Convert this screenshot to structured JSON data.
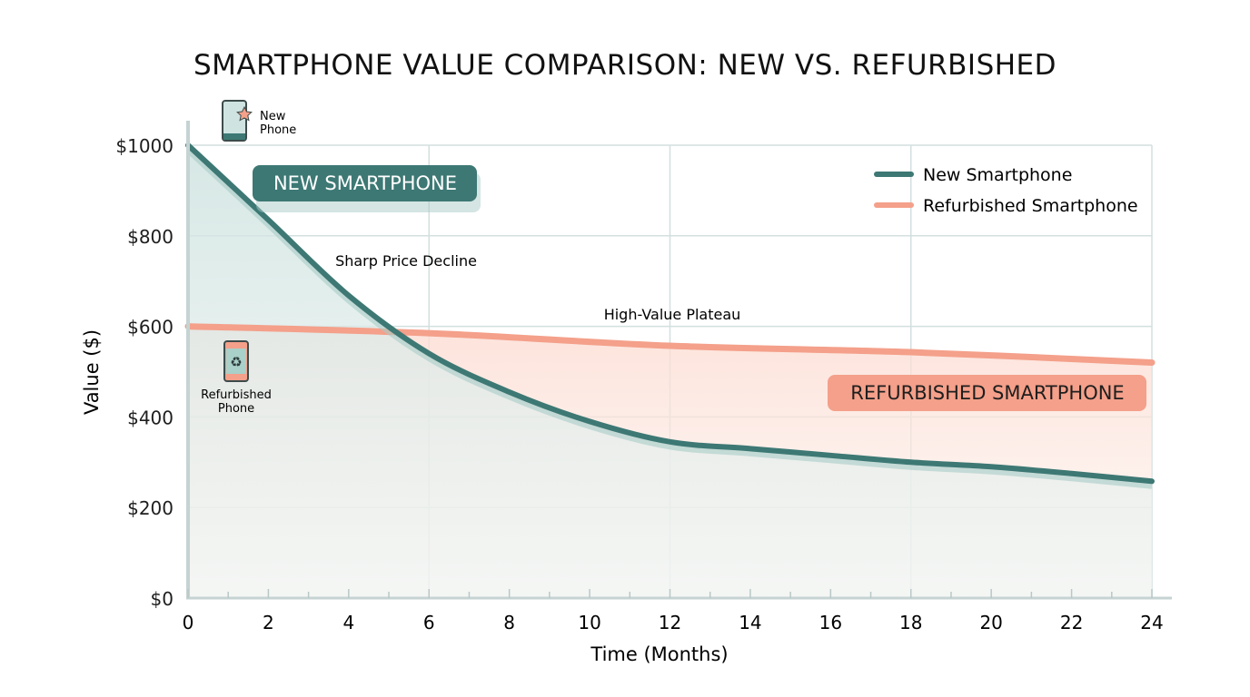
{
  "chart_data": {
    "type": "line",
    "title": "SMARTPHONE VALUE COMPARISON: NEW VS. REFURBISHED",
    "xlabel": "Time (Months)",
    "ylabel": "Value ($)",
    "xlim": [
      0,
      24
    ],
    "ylim": [
      0,
      1000
    ],
    "x_ticks": [
      0,
      2,
      4,
      6,
      8,
      10,
      12,
      14,
      16,
      18,
      20,
      22,
      24
    ],
    "y_ticks": [
      0,
      200,
      400,
      600,
      800,
      1000
    ],
    "y_tick_labels": [
      "$0",
      "$200",
      "$400",
      "$600",
      "$800",
      "$1000"
    ],
    "grid": true,
    "legend_position": "top-right",
    "series": [
      {
        "name": "New Smartphone",
        "color": "#3d7874",
        "x": [
          0,
          2,
          4,
          6,
          8,
          10,
          12,
          14,
          16,
          18,
          20,
          22,
          24
        ],
        "values": [
          1000,
          835,
          668,
          540,
          455,
          390,
          345,
          330,
          315,
          300,
          290,
          275,
          258
        ]
      },
      {
        "name": "Refurbished Smartphone",
        "color": "#f4a08a",
        "x": [
          0,
          6,
          12,
          18,
          24
        ],
        "values": [
          600,
          585,
          557,
          543,
          520
        ]
      }
    ],
    "annotations": {
      "new_label": "NEW SMARTPHONE",
      "refurb_label": "REFURBISHED SMARTPHONE",
      "sharp_decline": "Sharp Price Decline",
      "plateau": "High-Value Plateau",
      "new_phone_icon_label": [
        "New",
        "Phone"
      ],
      "refurb_phone_icon_label": [
        "Refurbished",
        "Phone"
      ]
    },
    "icons": {
      "new_phone": "phone-star-icon",
      "refurb_phone": "phone-recycle-icon"
    }
  }
}
